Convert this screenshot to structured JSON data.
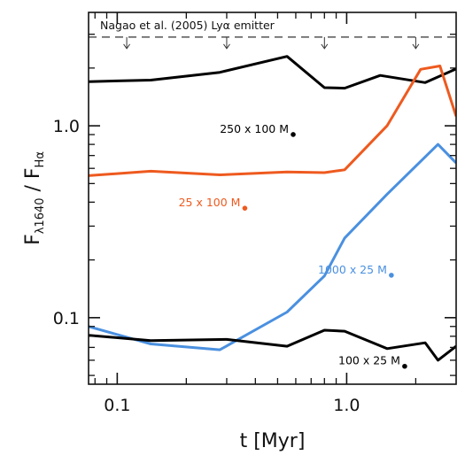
{
  "chart_data": {
    "type": "line",
    "xscale": "log",
    "yscale": "log",
    "xlim": [
      0.075,
      3.0
    ],
    "ylim": [
      0.045,
      3.9
    ],
    "xlabel": "t  [Myr]",
    "ylabel": {
      "main": "F",
      "sub1": "λ1640",
      "sep": " / F",
      "sub2": "Hα"
    },
    "xticks": [
      {
        "value": 0.1,
        "label": "0.1"
      },
      {
        "value": 1.0,
        "label": "1.0"
      }
    ],
    "yticks": [
      {
        "value": 0.1,
        "label": "0.1"
      },
      {
        "value": 1.0,
        "label": "1.0"
      }
    ],
    "reference_line": {
      "label": "Nagao et al. (2005) Lyα emitter",
      "y": 2.9,
      "style": "dashed",
      "arrows_x": [
        0.11,
        0.3,
        0.8,
        2.0
      ]
    },
    "series": [
      {
        "name": "250 x 100 M",
        "color": "#000000",
        "x": [
          0.075,
          0.14,
          0.28,
          0.55,
          0.8,
          0.98,
          1.4,
          2.2,
          3.0
        ],
        "y": [
          1.7,
          1.73,
          1.9,
          2.3,
          1.58,
          1.57,
          1.83,
          1.68,
          1.98
        ]
      },
      {
        "name": "25 x 100 M",
        "color": "#ee5a1f",
        "x": [
          0.075,
          0.14,
          0.28,
          0.55,
          0.8,
          0.98,
          1.5,
          2.1,
          2.55,
          3.0
        ],
        "y": [
          0.55,
          0.58,
          0.555,
          0.575,
          0.57,
          0.59,
          1.0,
          1.97,
          2.05,
          1.12
        ]
      },
      {
        "name": "1000 x 25 M",
        "color": "#4a90e0",
        "x": [
          0.075,
          0.14,
          0.28,
          0.55,
          0.8,
          0.98,
          1.5,
          2.5,
          3.0
        ],
        "y": [
          0.09,
          0.073,
          0.068,
          0.107,
          0.165,
          0.26,
          0.44,
          0.8,
          0.64
        ]
      },
      {
        "name": "100 x 25 M",
        "color": "#000000",
        "x": [
          0.075,
          0.14,
          0.3,
          0.55,
          0.8,
          0.98,
          1.5,
          2.2,
          2.5,
          3.0
        ],
        "y": [
          0.081,
          0.076,
          0.077,
          0.071,
          0.086,
          0.085,
          0.069,
          0.074,
          0.06,
          0.071
        ]
      }
    ],
    "annotations": [
      {
        "text": "250 x 100 M",
        "color": "#000000"
      },
      {
        "text": "25 x 100 M",
        "color": "#ee5a1f"
      },
      {
        "text": "1000 x 25 M",
        "color": "#4a90e0"
      },
      {
        "text": "100 x 25 M",
        "color": "#000000"
      }
    ],
    "grid": false
  }
}
